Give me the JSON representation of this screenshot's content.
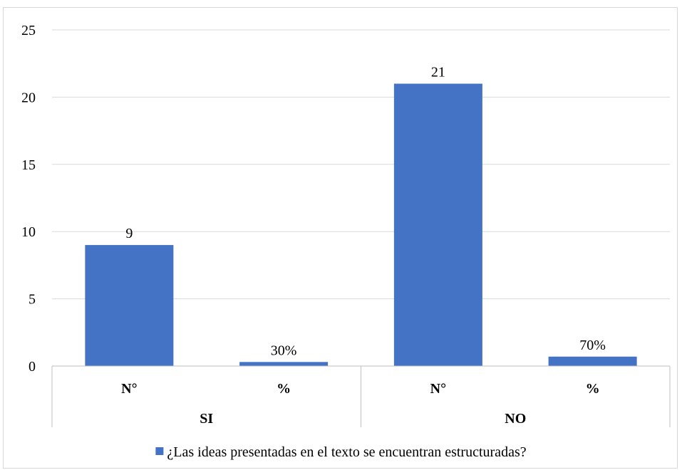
{
  "chart_data": {
    "type": "bar",
    "title": "",
    "xlabel": "",
    "ylabel": "",
    "ylim": [
      0,
      25
    ],
    "yticks": [
      0,
      5,
      10,
      15,
      20,
      25
    ],
    "grid": true,
    "legend_position": "bottom",
    "groups": [
      {
        "label": "SI",
        "categories": [
          {
            "label": "N°",
            "value": 9,
            "data_label": "9"
          },
          {
            "label": "%",
            "value": 0.3,
            "data_label": "30%"
          }
        ]
      },
      {
        "label": "NO",
        "categories": [
          {
            "label": "N°",
            "value": 21,
            "data_label": "21"
          },
          {
            "label": "%",
            "value": 0.7,
            "data_label": "70%"
          }
        ]
      }
    ],
    "series": [
      {
        "name": "¿Las ideas presentadas en el texto se encuentran estructuradas?",
        "values": [
          9,
          0.3,
          21,
          0.7
        ],
        "color": "#4472c4"
      }
    ],
    "colors": {
      "bar": "#4472c4",
      "grid": "#d9d9d9",
      "axis": "#bfbfbf"
    }
  }
}
